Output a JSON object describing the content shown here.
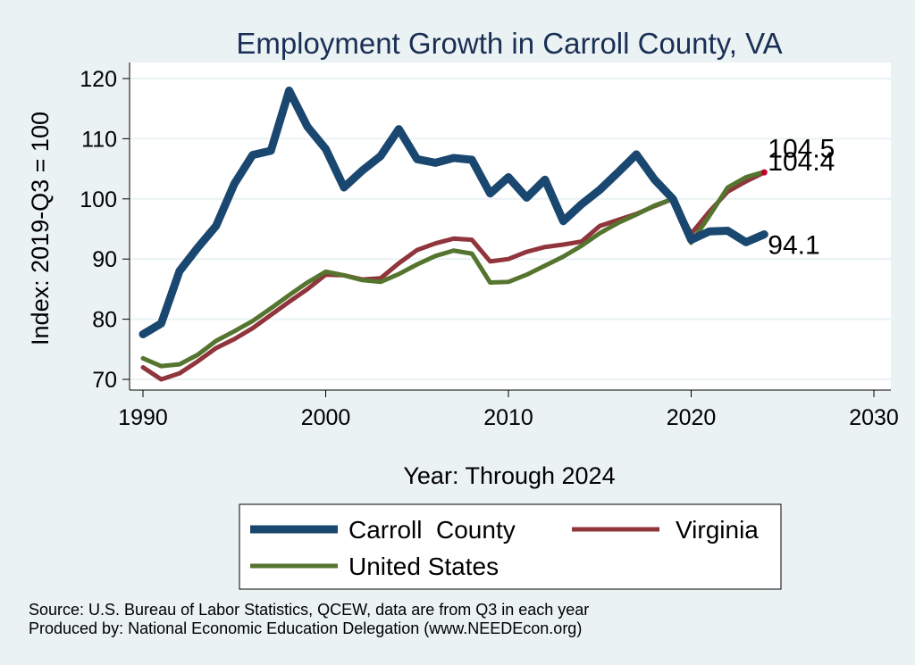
{
  "chart_data": {
    "type": "line",
    "title": "Employment Growth in Carroll County, VA",
    "xlabel": "Year: Through 2024",
    "ylabel": "Index: 2019-Q3 = 100",
    "xlim": [
      1990,
      2030
    ],
    "ylim": [
      68,
      122
    ],
    "xticks": [
      "1990",
      "2000",
      "2010",
      "2020",
      "2030"
    ],
    "yticks": [
      "70",
      "80",
      "90",
      "100",
      "110",
      "120"
    ],
    "grid": true,
    "legend_placement": "bottom",
    "x": [
      1990,
      1991,
      1992,
      1993,
      1994,
      1995,
      1996,
      1997,
      1998,
      1999,
      2000,
      2001,
      2002,
      2003,
      2004,
      2005,
      2006,
      2007,
      2008,
      2009,
      2010,
      2011,
      2012,
      2013,
      2014,
      2015,
      2016,
      2017,
      2018,
      2019,
      2020,
      2021,
      2022,
      2023,
      2024
    ],
    "series": [
      {
        "name": "Carroll  County",
        "color": "#1a476f",
        "values": [
          77.5,
          79.3,
          88.0,
          91.9,
          95.5,
          102.5,
          107.3,
          108.0,
          118.0,
          112.0,
          108.3,
          101.9,
          104.7,
          107.1,
          111.6,
          106.6,
          106.0,
          106.8,
          106.5,
          100.9,
          103.6,
          100.2,
          103.2,
          96.3,
          99.1,
          101.5,
          104.4,
          107.4,
          103.2,
          100.0,
          93.2,
          94.6,
          94.7,
          92.8,
          94.1
        ],
        "end_label": "94.1"
      },
      {
        "name": "Virginia",
        "color": "#90353b",
        "values": [
          72.0,
          70.0,
          71.0,
          73.0,
          75.2,
          76.7,
          78.5,
          80.7,
          82.9,
          85.0,
          87.4,
          87.3,
          86.6,
          86.8,
          89.3,
          91.5,
          92.6,
          93.4,
          93.2,
          89.6,
          90.0,
          91.2,
          92.0,
          92.4,
          92.9,
          95.5,
          96.5,
          97.5,
          98.8,
          100.0,
          94.2,
          97.9,
          101.2,
          102.9,
          104.4
        ],
        "end_label": "104.4"
      },
      {
        "name": "United States",
        "color": "#55752f",
        "values": [
          73.5,
          72.2,
          72.5,
          74.1,
          76.4,
          78.0,
          79.7,
          81.8,
          84.0,
          86.1,
          87.9,
          87.3,
          86.5,
          86.2,
          87.5,
          89.1,
          90.5,
          91.4,
          90.9,
          86.1,
          86.2,
          87.4,
          88.9,
          90.4,
          92.2,
          94.3,
          96.0,
          97.4,
          98.9,
          100.0,
          92.7,
          97.2,
          101.9,
          103.6,
          104.5
        ],
        "end_label": "104.5"
      }
    ]
  },
  "source_note": "Source: U.S. Bureau of Labor Statistics, QCEW, data are from Q3 in each year",
  "producer_note": "Produced by: National Economic Education Delegation (www.NEEDEcon.org)"
}
